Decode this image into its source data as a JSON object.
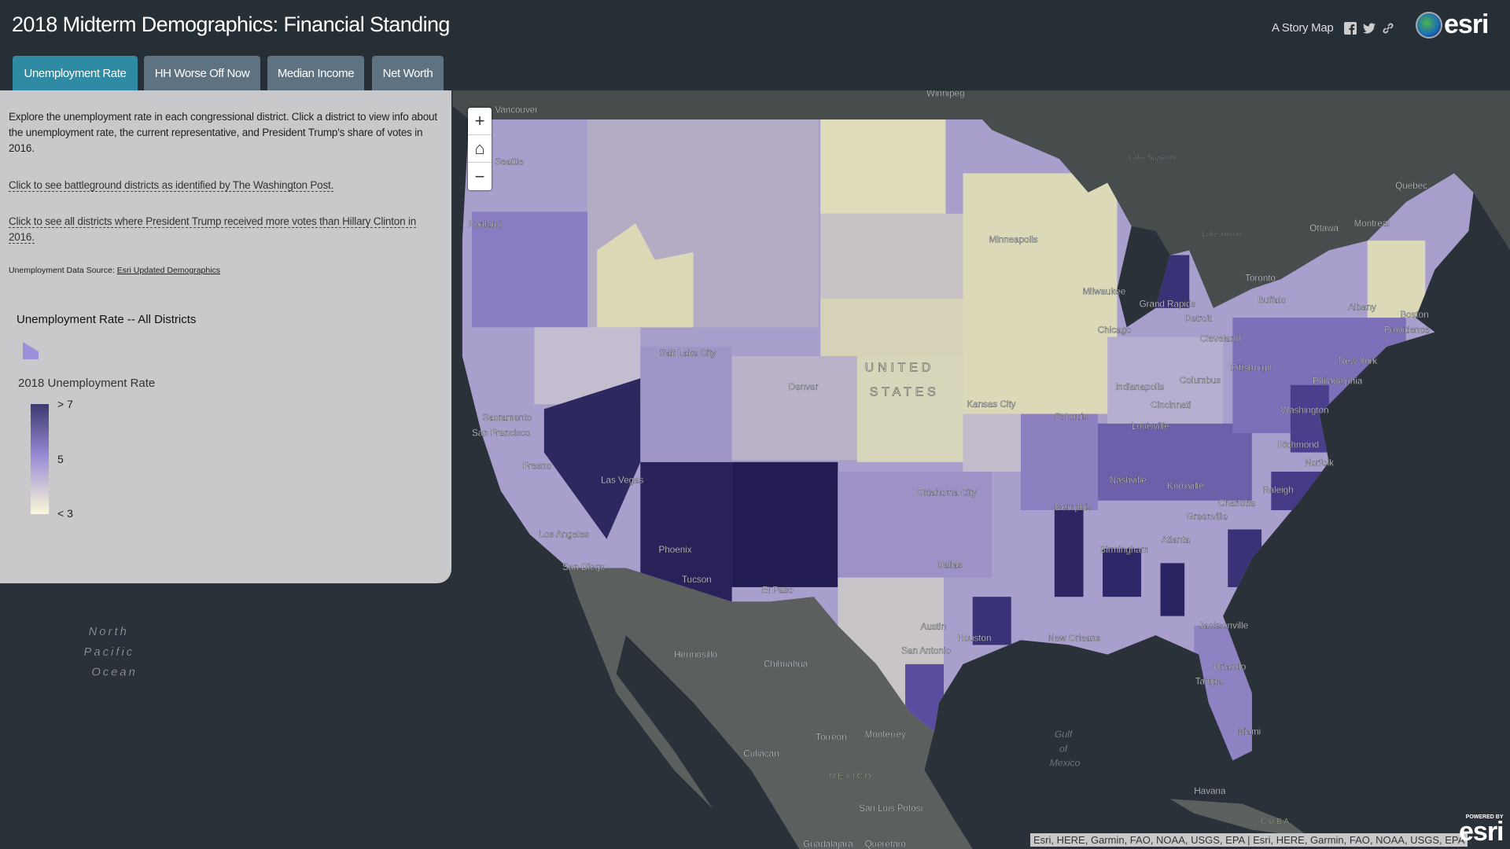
{
  "header": {
    "title": "2018 Midterm Demographics: Financial Standing",
    "story_map": "A Story Map",
    "logo": "esri"
  },
  "tabs": [
    {
      "label": "Unemployment Rate",
      "active": true
    },
    {
      "label": "HH Worse Off Now"
    },
    {
      "label": "Median Income"
    },
    {
      "label": "Net Worth"
    }
  ],
  "icons": {
    "facebook": "facebook-icon",
    "twitter": "twitter-icon",
    "link": "link-icon"
  },
  "panel": {
    "intro": "Explore the unemployment rate in each congressional district. Click a district to view info about the unemployment rate, the current representative, and President Trump's share of votes in 2016.",
    "link1": "Click to see battleground districts as identified by The Washington Post.",
    "link2": "Click to see all districts where President Trump received more votes than Hillary Clinton in 2016.",
    "source_label": "Unemployment Data Source: ",
    "source_link": "Esri Updated Demographics",
    "legend_title": "Unemployment Rate -- All Districts",
    "legend_field": "2018 Unemployment Rate",
    "ramp": {
      "high": "> 7",
      "mid": "5",
      "low": "< 3"
    }
  },
  "zoom": {
    "in": "+",
    "home": "⌂",
    "out": "−"
  },
  "map": {
    "labels": {
      "vancouver": "Vancouver",
      "seattle": "Seattle",
      "portland": "Portland",
      "sacramento": "Sacramento",
      "sanfrancisco": "San Francisco",
      "fresno": "Fresno",
      "lasvegas": "Las Vegas",
      "losangeles": "Los Angeles",
      "sandiego": "San Diego",
      "phoenix": "Phoenix",
      "tucson": "Tucson",
      "elpaso": "El Paso",
      "saltlake": "Salt Lake City",
      "denver": "Denver",
      "okc": "Oklahoma City",
      "dallas": "Dallas",
      "austin": "Austin",
      "sanantonio": "San Antonio",
      "houston": "Houston",
      "kansascity": "Kansas City",
      "minneapolis": "Minneapolis",
      "milwaukee": "Milwaukee",
      "chicago": "Chicago",
      "grandrapids": "Grand Rapids",
      "detroit": "Detroit",
      "toronto": "Toronto",
      "ottawa": "Ottawa",
      "montreal": "Montreal",
      "quebec": "Quebec",
      "boston": "Boston",
      "providence": "Providence",
      "albany": "Albany",
      "newyork": "New York",
      "philadelphia": "Philadelphia",
      "pittsburgh": "Pittsburgh",
      "cleveland": "Cleveland",
      "columbus": "Columbus",
      "indianapolis": "Indianapolis",
      "cincinnati": "Cincinnati",
      "louisville": "Louisville",
      "stlouis": "St Louis",
      "washington": "Washington",
      "richmond": "Richmond",
      "norfolk": "Norfolk",
      "nashville": "Nashville",
      "knoxville": "Knoxville",
      "memphis": "Memphis",
      "charlotte": "Charlotte",
      "greenville": "Greenville",
      "raleigh": "Raleigh",
      "birmingham": "Birmingham",
      "atlanta": "Atlanta",
      "jacksonville": "Jacksonville",
      "orlando": "Orlando",
      "tampa": "Tampa",
      "miami": "Miami",
      "neworleans": "New Orleans",
      "hermosillo": "Hermosillo",
      "chihuahua": "Chihuahua",
      "torreon": "Torreón",
      "monterrey": "Monterrey",
      "culiacan": "Culiacan",
      "mexico": "MÉXICO",
      "sanluis": "San Luis Potosí",
      "guadalajara": "Guadalajara",
      "havana": "Havana",
      "cuba": "CUBA",
      "winnipeg": "Winnipeg",
      "buffalo": "Buffalo",
      "querétaro": "Querétaro",
      "united": "UNITED",
      "states": "STATES",
      "lakesuperior": "Lake Superior",
      "lakehuron": "Lake Huron",
      "gulf1": "Gulf",
      "gulf2": "of",
      "gulf3": "Mexico",
      "ocean1": "North",
      "ocean2": "Pacific",
      "ocean3": "Ocean"
    },
    "colors": {
      "ocean": "#2b3139",
      "land": "#5b605f",
      "pale": "#dcd9b8",
      "light": "#b6adc9",
      "mid": "#8b7cc0",
      "dark": "#3a3276",
      "darkest": "#241d55"
    }
  },
  "attribution": "Esri, HERE, Garmin, FAO, NOAA, USGS, EPA | Esri, HERE, Garmin, FAO, NOAA, USGS, EPA",
  "powered": {
    "small": "POWERED BY",
    "big": "esri"
  }
}
